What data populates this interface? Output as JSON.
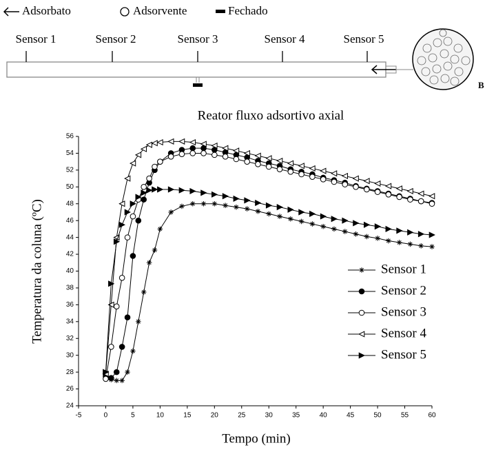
{
  "diagram": {
    "legend": [
      "Adsorbato",
      "Adsorvente",
      "Fechado"
    ],
    "sensors": [
      "Sensor 1",
      "Sensor 2",
      "Sensor 3",
      "Sensor 4",
      "Sensor 5"
    ],
    "side_label": "B"
  },
  "chart_data": {
    "type": "line",
    "title": "Reator fluxo adsortivo axial",
    "x_label": "Tempo (min)",
    "y_label": "Temperatura da coluna (ºC)",
    "x": [
      0,
      1,
      2,
      3,
      4,
      5,
      6,
      7,
      8,
      9,
      10,
      12,
      14,
      16,
      18,
      20,
      22,
      24,
      26,
      28,
      30,
      32,
      34,
      36,
      38,
      40,
      42,
      44,
      46,
      48,
      50,
      52,
      54,
      56,
      58,
      60
    ],
    "xlim": [
      -5,
      60
    ],
    "xticks": [
      -5,
      0,
      5,
      10,
      15,
      20,
      25,
      30,
      35,
      40,
      45,
      50,
      55,
      60
    ],
    "ylim": [
      24,
      56
    ],
    "yticks": [
      24,
      26,
      28,
      30,
      32,
      34,
      36,
      38,
      40,
      42,
      44,
      46,
      48,
      50,
      52,
      54,
      56
    ],
    "series": [
      {
        "name": "Sensor 1",
        "color": "#000000",
        "marker": "asterisk",
        "values": [
          27.2,
          27.1,
          27.0,
          27.0,
          28.0,
          30.5,
          34.0,
          37.5,
          41.0,
          42.5,
          45.0,
          47.0,
          47.7,
          48.0,
          48.0,
          48.0,
          47.8,
          47.6,
          47.4,
          47.1,
          46.8,
          46.5,
          46.2,
          45.9,
          45.6,
          45.3,
          45.0,
          44.7,
          44.4,
          44.1,
          43.9,
          43.6,
          43.4,
          43.2,
          43.0,
          42.9
        ]
      },
      {
        "name": "Sensor 2",
        "color": "#000000",
        "marker": "filled-circle",
        "values": [
          27.5,
          27.3,
          28.0,
          31.0,
          34.5,
          41.8,
          46.0,
          48.5,
          50.5,
          52.0,
          53.0,
          54.0,
          54.4,
          54.6,
          54.6,
          54.4,
          54.1,
          53.8,
          53.5,
          53.1,
          52.8,
          52.5,
          52.1,
          51.8,
          51.5,
          51.1,
          50.8,
          50.5,
          50.1,
          49.8,
          49.5,
          49.2,
          48.9,
          48.6,
          48.3,
          48.1
        ]
      },
      {
        "name": "Sensor 3",
        "color": "#000000",
        "marker": "open-circle",
        "values": [
          27.2,
          31.0,
          35.8,
          39.2,
          44.0,
          46.5,
          48.5,
          50.0,
          51.0,
          52.4,
          53.0,
          53.6,
          53.9,
          54.0,
          54.0,
          53.8,
          53.6,
          53.3,
          53.0,
          52.7,
          52.4,
          52.1,
          51.8,
          51.5,
          51.2,
          50.9,
          50.6,
          50.3,
          50.0,
          49.7,
          49.4,
          49.1,
          48.8,
          48.5,
          48.3,
          48.0
        ]
      },
      {
        "name": "Sensor 4",
        "color": "#000000",
        "marker": "open-left-triangle",
        "values": [
          27.8,
          36.0,
          44.0,
          48.0,
          51.0,
          52.8,
          53.8,
          54.5,
          55.0,
          55.2,
          55.3,
          55.4,
          55.4,
          55.3,
          55.1,
          54.9,
          54.6,
          54.3,
          54.0,
          53.7,
          53.4,
          53.1,
          52.8,
          52.5,
          52.2,
          51.9,
          51.6,
          51.3,
          51.0,
          50.7,
          50.4,
          50.1,
          49.8,
          49.5,
          49.2,
          48.9
        ]
      },
      {
        "name": "Sensor 5",
        "color": "#000000",
        "marker": "filled-right-triangle",
        "values": [
          28.0,
          38.5,
          43.5,
          45.5,
          47.0,
          48.0,
          48.8,
          49.3,
          49.6,
          49.7,
          49.7,
          49.7,
          49.6,
          49.5,
          49.3,
          49.1,
          48.9,
          48.6,
          48.4,
          48.1,
          47.8,
          47.6,
          47.3,
          47.0,
          46.8,
          46.5,
          46.2,
          46.0,
          45.7,
          45.5,
          45.3,
          45.0,
          44.8,
          44.6,
          44.4,
          44.3
        ]
      }
    ]
  }
}
